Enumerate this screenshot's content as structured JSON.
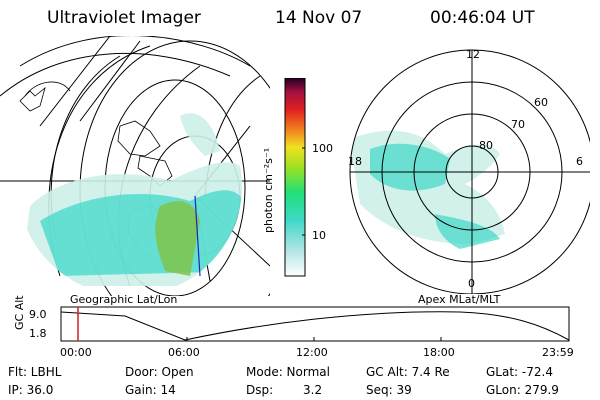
{
  "header": {
    "instrument": "Ultraviolet Imager",
    "date": "14 Nov 07",
    "time": "00:46:04 UT"
  },
  "geographic_map": {
    "caption": "Geographic Lat/Lon"
  },
  "colorbar": {
    "unit_label": "photon cm⁻²s⁻¹",
    "ticks": [
      "100",
      "10"
    ]
  },
  "polar_plot": {
    "caption": "Apex MLat/MLT",
    "lat_labels": [
      "80",
      "70",
      "60"
    ],
    "mlt_labels": {
      "top": "12",
      "left": "18",
      "right": "6",
      "bottom": "0"
    }
  },
  "altitude_timeline": {
    "axis_label": "GC Alt",
    "y_ticks": [
      "9.0",
      "1.8"
    ],
    "x_ticks": [
      "00:00",
      "06:00",
      "12:00",
      "18:00",
      "23:59"
    ]
  },
  "status": {
    "row1": {
      "filter": "Flt: LBHL",
      "door": "Door: Open",
      "mode": "Mode: Normal",
      "gc_alt": "GC Alt: 7.4 Re",
      "glat": "GLat: -72.4"
    },
    "row2": {
      "ip": "IP: 36.0",
      "gain": "Gain: 14",
      "dsp_label": "Dsp:",
      "dsp_value": "3.2",
      "seq": "Seq: 39",
      "glon": "GLon: 279.9"
    }
  },
  "colors": {
    "background": "#ffffff",
    "aurora_cyan": "#40d8c8",
    "aurora_green": "#7fc64a",
    "time_marker": "#d02020",
    "track": "#2020c0"
  }
}
